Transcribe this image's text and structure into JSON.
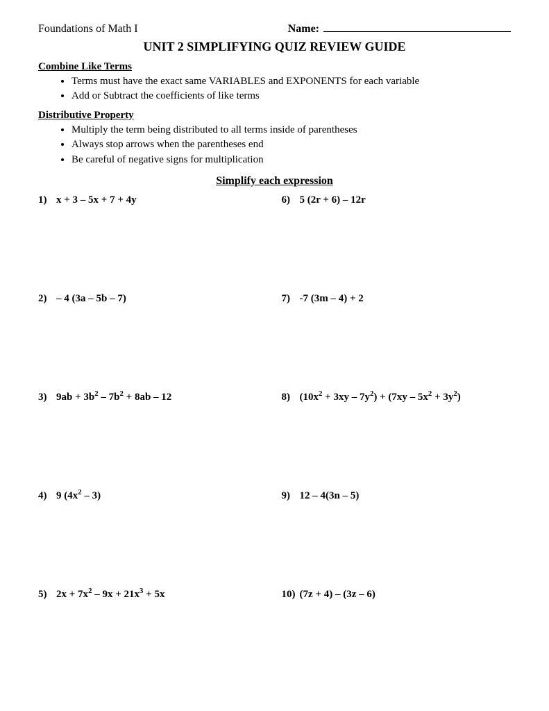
{
  "header": {
    "course": "Foundations of Math I",
    "name_label": "Name:"
  },
  "title": "UNIT 2 SIMPLIFYING QUIZ REVIEW GUIDE",
  "section1": {
    "heading": "Combine Like Terms",
    "bullets": [
      "Terms must have the exact same VARIABLES and EXPONENTS for each variable",
      "Add or Subtract the coefficients of like terms"
    ]
  },
  "section2": {
    "heading": "Distributive Property",
    "bullets": [
      "Multiply the term being distributed to all terms inside of parentheses",
      "Always stop arrows when the parentheses end",
      "Be careful of negative signs for multiplication"
    ]
  },
  "simplify_heading": "Simplify each expression",
  "problems": {
    "left": [
      {
        "num": "1)",
        "expr": "x + 3 – 5x + 7 + 4y"
      },
      {
        "num": "2)",
        "expr": "– 4 (3a – 5b – 7)"
      },
      {
        "num": "3)",
        "expr": "9ab + 3b<sup>2</sup> – 7b<sup>2</sup> + 8ab – 12"
      },
      {
        "num": "4)",
        "expr": "9 (4x<sup>2</sup> – 3)"
      },
      {
        "num": "5)",
        "expr": "2x + 7x<sup>2</sup> – 9x + 21x<sup>3</sup> + 5x"
      }
    ],
    "right": [
      {
        "num": "6)",
        "expr": "5 (2r + 6) – 12r"
      },
      {
        "num": "7)",
        "expr": "-7 (3m – 4) + 2"
      },
      {
        "num": "8)",
        "expr": "(10x<sup>2</sup> + 3xy – 7y<sup>2</sup>) + (7xy – 5x<sup>2</sup> + 3y<sup>2</sup>)"
      },
      {
        "num": "9)",
        "expr": "12 – 4(3n – 5)"
      },
      {
        "num": "10)",
        "expr": "(7z + 4) – (3z – 6)"
      }
    ]
  }
}
